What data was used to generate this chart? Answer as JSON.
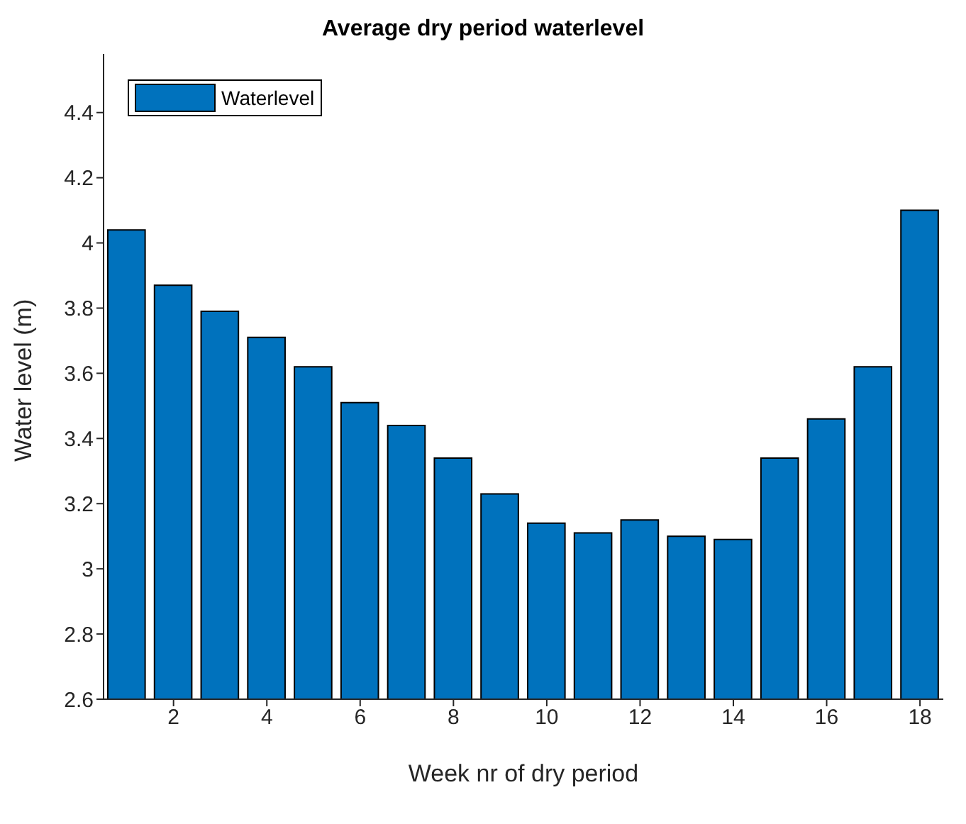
{
  "chart_data": {
    "type": "bar",
    "title": "Average dry period waterlevel",
    "xlabel": "Week nr of dry period",
    "ylabel": "Water level (m)",
    "x": [
      1,
      2,
      3,
      4,
      5,
      6,
      7,
      8,
      9,
      10,
      11,
      12,
      13,
      14,
      15,
      16,
      17,
      18
    ],
    "series": [
      {
        "name": "Waterlevel",
        "color": "#0072bd",
        "values": [
          4.04,
          3.87,
          3.79,
          3.71,
          3.62,
          3.51,
          3.44,
          3.34,
          3.23,
          3.14,
          3.11,
          3.15,
          3.1,
          3.09,
          3.34,
          3.46,
          3.62,
          4.1
        ]
      }
    ],
    "xlim": [
      0.5,
      18.5
    ],
    "xticks": [
      2,
      4,
      6,
      8,
      10,
      12,
      14,
      16,
      18
    ],
    "ylim": [
      2.6,
      4.58
    ],
    "yticks": [
      2.6,
      2.8,
      3,
      3.2,
      3.4,
      3.6,
      3.8,
      4,
      4.2,
      4.4
    ],
    "grid": false,
    "legend": "top left"
  }
}
